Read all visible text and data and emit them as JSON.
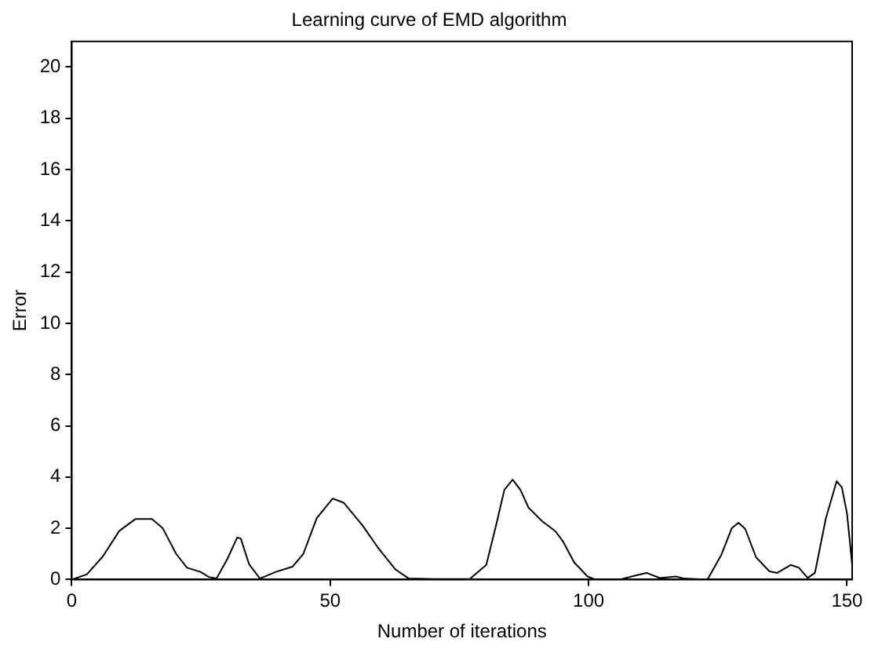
{
  "chart_data": {
    "type": "line",
    "title": "Learning curve of EMD algorithm",
    "xlabel": "Number of iterations",
    "ylabel": "Error",
    "x": [
      0,
      2.9,
      6,
      9.2,
      12.3,
      15.5,
      17.6,
      20.2,
      22.3,
      24.9,
      26.5,
      28,
      30.1,
      32,
      32.7,
      34.3,
      36.4,
      39.5,
      42.7,
      44.8,
      47.4,
      50.5,
      52.6,
      56.3,
      59.4,
      62.6,
      65.2,
      70,
      77,
      80.2,
      82.2,
      83.7,
      85.3,
      86.8,
      88.4,
      91,
      93.6,
      95.1,
      97.2,
      99.8,
      101.3,
      106,
      109.1,
      111.2,
      113.8,
      116.9,
      118.4,
      123,
      125.7,
      127.7,
      129,
      130.3,
      132.4,
      135,
      136.5,
      139.1,
      140.7,
      142.4,
      143.8,
      145.9,
      148,
      149,
      150,
      151
    ],
    "series": [
      {
        "color": "#000000",
        "values": [
          0,
          0.2,
          0.9,
          1.9,
          2.36,
          2.36,
          2,
          1,
          0.46,
          0.3,
          0.1,
          0.04,
          0.8,
          1.64,
          1.6,
          0.6,
          0.04,
          0.3,
          0.5,
          1,
          2.4,
          3.16,
          3,
          2.1,
          1.2,
          0.4,
          0.04,
          0.02,
          0.02,
          0.57,
          2.2,
          3.5,
          3.9,
          3.5,
          2.8,
          2.28,
          1.88,
          1.47,
          0.67,
          0.12,
          0,
          0,
          0.16,
          0.26,
          0.06,
          0.12,
          0.04,
          0,
          0.97,
          2,
          2.22,
          1.98,
          0.87,
          0.32,
          0.26,
          0.57,
          0.46,
          0.06,
          0.26,
          2.38,
          3.84,
          3.6,
          2.59,
          0.57
        ]
      }
    ],
    "xlim": [
      0,
      151
    ],
    "xticks": [
      0,
      50,
      100,
      150
    ],
    "ylim": [
      0,
      21
    ],
    "yticks": [
      0,
      2,
      4,
      6,
      8,
      10,
      12,
      14,
      16,
      18,
      20
    ],
    "grid": false,
    "legend": false,
    "marker": "none",
    "line_style": "solid"
  }
}
